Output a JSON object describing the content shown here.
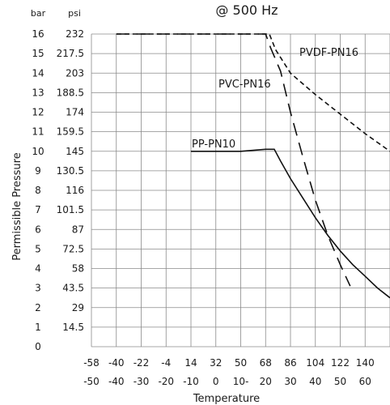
{
  "chart_data": {
    "type": "line",
    "title": "@ 500 Hz",
    "xlabel": "Temperature",
    "ylabel": "Permissible Pressure",
    "y_unit_headers": [
      "bar",
      "psi"
    ],
    "xlim_c": [
      -50,
      70
    ],
    "ylim_bar": [
      0,
      16
    ],
    "grid": true,
    "x_ticks_f": [
      "-58",
      "-40",
      "-22",
      "-4",
      "14",
      "32",
      "50",
      "68",
      "86",
      "104",
      "122",
      "140"
    ],
    "x_ticks_c": [
      "-50",
      "-40",
      "-30",
      "-20",
      "-10",
      "0",
      "10-",
      "20",
      "30",
      "40",
      "50",
      "60"
    ],
    "y_ticks_bar": [
      "0",
      "1",
      "2",
      "3",
      "4",
      "5",
      "6",
      "7",
      "8",
      "9",
      "10",
      "11",
      "12",
      "13",
      "14",
      "15",
      "16"
    ],
    "y_ticks_psi": [
      "",
      "14.5",
      "29",
      "43.5",
      "58",
      "72.5",
      "87",
      "101.5",
      "116",
      "130.5",
      "145",
      "159.5",
      "174",
      "188.5",
      "203",
      "217.5",
      "232"
    ],
    "series": [
      {
        "name": "PP-PN10",
        "style": "solid",
        "x_c": [
          -10,
          0,
          10,
          20,
          23.5,
          26,
          30,
          35,
          40,
          45,
          50,
          55,
          60,
          65,
          70
        ],
        "y_bar": [
          10,
          10,
          10,
          10.1,
          10.1,
          9.5,
          8.6,
          7.6,
          6.6,
          5.7,
          4.9,
          4.2,
          3.6,
          3.0,
          2.5
        ]
      },
      {
        "name": "PVC-PN16",
        "style": "dashed",
        "x_c": [
          -40,
          0,
          10,
          20,
          22,
          26,
          30,
          35,
          40,
          45,
          50,
          54
        ],
        "y_bar": [
          16,
          16,
          16,
          16,
          15.3,
          14.1,
          12,
          9.7,
          7.5,
          5.7,
          4.2,
          3.1
        ]
      },
      {
        "name": "PVDF-PN16",
        "style": "dotted",
        "x_c": [
          -40,
          0,
          10,
          20,
          21.5,
          24,
          30,
          40,
          50,
          60,
          70
        ],
        "y_bar": [
          16,
          16,
          16,
          16,
          16,
          15.2,
          14,
          12.9,
          11.9,
          10.9,
          10.0
        ]
      }
    ]
  }
}
